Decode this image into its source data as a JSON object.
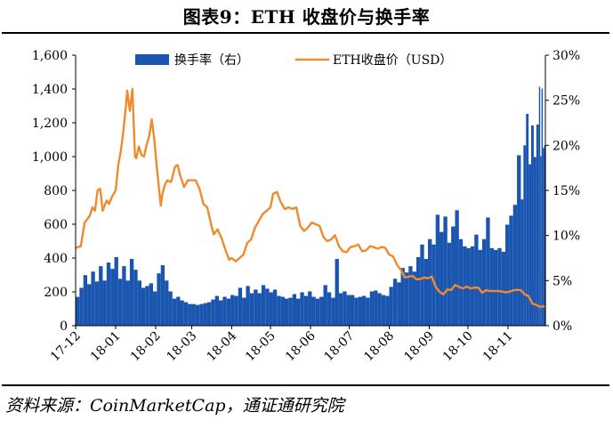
{
  "figure": {
    "title": "图表9：ETH 收盘价与换手率",
    "source": "资料来源：CoinMarketCap，通证通研究院"
  },
  "colors": {
    "turnover": "#1a55b0",
    "price": "#f08a2e"
  },
  "chart_data": {
    "type": "bar+line",
    "legend": {
      "placement": "top",
      "entries": [
        "换手率（右）",
        "ETH收盘价（USD）"
      ]
    },
    "x": {
      "start": "2017-12-01",
      "end": "2018-11-30",
      "ticks": [
        {
          "label": "17-12",
          "date": "2017-12-01"
        },
        {
          "label": "18-01",
          "date": "2018-01-01"
        },
        {
          "label": "18-02",
          "date": "2018-02-01"
        },
        {
          "label": "18-03",
          "date": "2018-03-01"
        },
        {
          "label": "18-04",
          "date": "2018-04-01"
        },
        {
          "label": "18-05",
          "date": "2018-05-01"
        },
        {
          "label": "18-06",
          "date": "2018-06-01"
        },
        {
          "label": "18-07",
          "date": "2018-07-01"
        },
        {
          "label": "18-08",
          "date": "2018-08-01"
        },
        {
          "label": "18-09",
          "date": "2018-09-01"
        },
        {
          "label": "18-10",
          "date": "2018-10-01"
        },
        {
          "label": "18-11",
          "date": "2018-11-01"
        }
      ]
    },
    "y_left": {
      "ylim": [
        0,
        1600
      ],
      "ticks": [
        "0",
        "200",
        "400",
        "600",
        "800",
        "1,000",
        "1,200",
        "1,400",
        "1,600"
      ]
    },
    "y_right": {
      "ylim": [
        0,
        30
      ],
      "unit": "%",
      "ticks": [
        "0%",
        "5%",
        "10%",
        "15%",
        "20%",
        "25%",
        "30%"
      ]
    },
    "series": [
      {
        "name": "ETH收盘价（USD）",
        "type": "line",
        "axis": "left",
        "points": [
          [
            "2017-12-01",
            460
          ],
          [
            "2017-12-05",
            470
          ],
          [
            "2017-12-08",
            610
          ],
          [
            "2017-12-12",
            650
          ],
          [
            "2017-12-14",
            700
          ],
          [
            "2017-12-16",
            680
          ],
          [
            "2017-12-18",
            800
          ],
          [
            "2017-12-20",
            810
          ],
          [
            "2017-12-22",
            680
          ],
          [
            "2017-12-25",
            740
          ],
          [
            "2017-12-27",
            720
          ],
          [
            "2017-12-29",
            760
          ],
          [
            "2018-01-01",
            800
          ],
          [
            "2018-01-03",
            950
          ],
          [
            "2018-01-05",
            1030
          ],
          [
            "2018-01-07",
            1150
          ],
          [
            "2018-01-09",
            1300
          ],
          [
            "2018-01-10",
            1390
          ],
          [
            "2018-01-12",
            1270
          ],
          [
            "2018-01-14",
            1400
          ],
          [
            "2018-01-16",
            1000
          ],
          [
            "2018-01-17",
            990
          ],
          [
            "2018-01-19",
            1060
          ],
          [
            "2018-01-21",
            1010
          ],
          [
            "2018-01-23",
            1000
          ],
          [
            "2018-01-25",
            1070
          ],
          [
            "2018-01-27",
            1120
          ],
          [
            "2018-01-29",
            1220
          ],
          [
            "2018-01-31",
            1100
          ],
          [
            "2018-02-02",
            930
          ],
          [
            "2018-02-05",
            710
          ],
          [
            "2018-02-06",
            770
          ],
          [
            "2018-02-08",
            830
          ],
          [
            "2018-02-10",
            860
          ],
          [
            "2018-02-13",
            850
          ],
          [
            "2018-02-16",
            940
          ],
          [
            "2018-02-18",
            950
          ],
          [
            "2018-02-20",
            890
          ],
          [
            "2018-02-23",
            820
          ],
          [
            "2018-02-26",
            860
          ],
          [
            "2018-03-01",
            860
          ],
          [
            "2018-03-04",
            860
          ],
          [
            "2018-03-07",
            810
          ],
          [
            "2018-03-10",
            720
          ],
          [
            "2018-03-13",
            700
          ],
          [
            "2018-03-16",
            600
          ],
          [
            "2018-03-18",
            540
          ],
          [
            "2018-03-21",
            570
          ],
          [
            "2018-03-24",
            520
          ],
          [
            "2018-03-27",
            450
          ],
          [
            "2018-03-30",
            390
          ],
          [
            "2018-04-01",
            400
          ],
          [
            "2018-04-04",
            380
          ],
          [
            "2018-04-07",
            400
          ],
          [
            "2018-04-10",
            420
          ],
          [
            "2018-04-13",
            490
          ],
          [
            "2018-04-16",
            510
          ],
          [
            "2018-04-19",
            580
          ],
          [
            "2018-04-22",
            620
          ],
          [
            "2018-04-25",
            660
          ],
          [
            "2018-04-28",
            680
          ],
          [
            "2018-05-01",
            700
          ],
          [
            "2018-05-03",
            780
          ],
          [
            "2018-05-06",
            790
          ],
          [
            "2018-05-09",
            730
          ],
          [
            "2018-05-12",
            690
          ],
          [
            "2018-05-15",
            700
          ],
          [
            "2018-05-18",
            690
          ],
          [
            "2018-05-21",
            700
          ],
          [
            "2018-05-24",
            590
          ],
          [
            "2018-05-27",
            560
          ],
          [
            "2018-05-30",
            580
          ],
          [
            "2018-06-02",
            610
          ],
          [
            "2018-06-05",
            600
          ],
          [
            "2018-06-08",
            590
          ],
          [
            "2018-06-11",
            525
          ],
          [
            "2018-06-14",
            500
          ],
          [
            "2018-06-17",
            510
          ],
          [
            "2018-06-20",
            535
          ],
          [
            "2018-06-23",
            470
          ],
          [
            "2018-06-26",
            440
          ],
          [
            "2018-06-29",
            435
          ],
          [
            "2018-07-02",
            465
          ],
          [
            "2018-07-05",
            470
          ],
          [
            "2018-07-08",
            480
          ],
          [
            "2018-07-11",
            440
          ],
          [
            "2018-07-14",
            445
          ],
          [
            "2018-07-17",
            470
          ],
          [
            "2018-07-20",
            465
          ],
          [
            "2018-07-23",
            455
          ],
          [
            "2018-07-26",
            465
          ],
          [
            "2018-07-29",
            460
          ],
          [
            "2018-08-01",
            420
          ],
          [
            "2018-08-04",
            410
          ],
          [
            "2018-08-07",
            360
          ],
          [
            "2018-08-10",
            330
          ],
          [
            "2018-08-13",
            285
          ],
          [
            "2018-08-16",
            290
          ],
          [
            "2018-08-19",
            295
          ],
          [
            "2018-08-22",
            275
          ],
          [
            "2018-08-25",
            275
          ],
          [
            "2018-08-28",
            285
          ],
          [
            "2018-08-31",
            280
          ],
          [
            "2018-09-03",
            290
          ],
          [
            "2018-09-06",
            230
          ],
          [
            "2018-09-09",
            200
          ],
          [
            "2018-09-12",
            185
          ],
          [
            "2018-09-15",
            215
          ],
          [
            "2018-09-18",
            210
          ],
          [
            "2018-09-21",
            240
          ],
          [
            "2018-09-24",
            230
          ],
          [
            "2018-09-27",
            220
          ],
          [
            "2018-09-30",
            232
          ],
          [
            "2018-10-03",
            220
          ],
          [
            "2018-10-06",
            225
          ],
          [
            "2018-10-09",
            225
          ],
          [
            "2018-10-12",
            195
          ],
          [
            "2018-10-15",
            210
          ],
          [
            "2018-10-18",
            205
          ],
          [
            "2018-10-21",
            205
          ],
          [
            "2018-10-24",
            205
          ],
          [
            "2018-10-27",
            203
          ],
          [
            "2018-10-30",
            197
          ],
          [
            "2018-11-02",
            200
          ],
          [
            "2018-11-05",
            209
          ],
          [
            "2018-11-08",
            212
          ],
          [
            "2018-11-11",
            210
          ],
          [
            "2018-11-14",
            185
          ],
          [
            "2018-11-17",
            175
          ],
          [
            "2018-11-20",
            130
          ],
          [
            "2018-11-23",
            123
          ],
          [
            "2018-11-26",
            110
          ],
          [
            "2018-11-28",
            115
          ],
          [
            "2018-11-30",
            113
          ]
        ]
      },
      {
        "name": "换手率（右）",
        "type": "bar",
        "axis": "right",
        "unit": "%",
        "points": [
          [
            "2017-12-01",
            3.2
          ],
          [
            "2017-12-04",
            4.2
          ],
          [
            "2017-12-07",
            5.6
          ],
          [
            "2017-12-10",
            4.6
          ],
          [
            "2017-12-13",
            6.0
          ],
          [
            "2017-12-16",
            4.9
          ],
          [
            "2017-12-19",
            6.6
          ],
          [
            "2017-12-22",
            5.0
          ],
          [
            "2017-12-25",
            7.0
          ],
          [
            "2017-12-28",
            6.3
          ],
          [
            "2017-12-31",
            7.6
          ],
          [
            "2018-01-03",
            5.2
          ],
          [
            "2018-01-06",
            6.6
          ],
          [
            "2018-01-09",
            5.0
          ],
          [
            "2018-01-12",
            7.4
          ],
          [
            "2018-01-15",
            6.2
          ],
          [
            "2018-01-18",
            5.0
          ],
          [
            "2018-01-21",
            4.2
          ],
          [
            "2018-01-24",
            4.4
          ],
          [
            "2018-01-27",
            4.7
          ],
          [
            "2018-01-30",
            3.8
          ],
          [
            "2018-02-02",
            5.8
          ],
          [
            "2018-02-05",
            6.7
          ],
          [
            "2018-02-08",
            5.0
          ],
          [
            "2018-02-11",
            3.8
          ],
          [
            "2018-02-14",
            3.0
          ],
          [
            "2018-02-17",
            3.2
          ],
          [
            "2018-02-20",
            2.8
          ],
          [
            "2018-02-23",
            2.6
          ],
          [
            "2018-02-26",
            2.4
          ],
          [
            "2018-03-01",
            2.4
          ],
          [
            "2018-03-04",
            2.3
          ],
          [
            "2018-03-07",
            2.4
          ],
          [
            "2018-03-10",
            2.5
          ],
          [
            "2018-03-13",
            2.6
          ],
          [
            "2018-03-16",
            2.9
          ],
          [
            "2018-03-19",
            3.3
          ],
          [
            "2018-03-22",
            2.8
          ],
          [
            "2018-03-25",
            3.2
          ],
          [
            "2018-03-28",
            3.0
          ],
          [
            "2018-03-31",
            3.4
          ],
          [
            "2018-04-03",
            3.3
          ],
          [
            "2018-04-06",
            4.2
          ],
          [
            "2018-04-09",
            3.1
          ],
          [
            "2018-04-12",
            4.4
          ],
          [
            "2018-04-15",
            3.6
          ],
          [
            "2018-04-18",
            4.0
          ],
          [
            "2018-04-21",
            3.6
          ],
          [
            "2018-04-24",
            4.5
          ],
          [
            "2018-04-27",
            4.1
          ],
          [
            "2018-04-30",
            3.7
          ],
          [
            "2018-05-03",
            4.0
          ],
          [
            "2018-05-06",
            3.3
          ],
          [
            "2018-05-09",
            3.2
          ],
          [
            "2018-05-12",
            3.0
          ],
          [
            "2018-05-15",
            3.1
          ],
          [
            "2018-05-18",
            3.5
          ],
          [
            "2018-05-21",
            3.0
          ],
          [
            "2018-05-24",
            3.7
          ],
          [
            "2018-05-27",
            3.3
          ],
          [
            "2018-05-30",
            3.8
          ],
          [
            "2018-06-02",
            3.2
          ],
          [
            "2018-06-05",
            3.0
          ],
          [
            "2018-06-08",
            3.2
          ],
          [
            "2018-06-11",
            4.5
          ],
          [
            "2018-06-14",
            3.7
          ],
          [
            "2018-06-17",
            3.1
          ],
          [
            "2018-06-20",
            7.4
          ],
          [
            "2018-06-23",
            3.6
          ],
          [
            "2018-06-26",
            3.8
          ],
          [
            "2018-06-29",
            3.4
          ],
          [
            "2018-07-02",
            3.4
          ],
          [
            "2018-07-05",
            3.1
          ],
          [
            "2018-07-08",
            3.2
          ],
          [
            "2018-07-11",
            3.3
          ],
          [
            "2018-07-14",
            3.1
          ],
          [
            "2018-07-17",
            3.8
          ],
          [
            "2018-07-20",
            3.9
          ],
          [
            "2018-07-23",
            3.6
          ],
          [
            "2018-07-26",
            3.4
          ],
          [
            "2018-07-29",
            3.3
          ],
          [
            "2018-08-01",
            4.3
          ],
          [
            "2018-08-04",
            5.2
          ],
          [
            "2018-08-07",
            4.8
          ],
          [
            "2018-08-10",
            6.4
          ],
          [
            "2018-08-13",
            5.9
          ],
          [
            "2018-08-16",
            6.6
          ],
          [
            "2018-08-19",
            6.0
          ],
          [
            "2018-08-22",
            7.6
          ],
          [
            "2018-08-25",
            9.0
          ],
          [
            "2018-08-28",
            7.4
          ],
          [
            "2018-08-31",
            9.6
          ],
          [
            "2018-09-03",
            9.0
          ],
          [
            "2018-09-06",
            12.3
          ],
          [
            "2018-09-09",
            10.4
          ],
          [
            "2018-09-12",
            12.1
          ],
          [
            "2018-09-15",
            9.2
          ],
          [
            "2018-09-18",
            11.0
          ],
          [
            "2018-09-21",
            12.8
          ],
          [
            "2018-09-24",
            9.6
          ],
          [
            "2018-09-27",
            8.8
          ],
          [
            "2018-09-30",
            8.6
          ],
          [
            "2018-10-03",
            8.8
          ],
          [
            "2018-10-06",
            10.1
          ],
          [
            "2018-10-09",
            8.4
          ],
          [
            "2018-10-12",
            9.6
          ],
          [
            "2018-10-15",
            12.0
          ],
          [
            "2018-10-18",
            8.6
          ],
          [
            "2018-10-21",
            8.4
          ],
          [
            "2018-10-24",
            8.6
          ],
          [
            "2018-10-27",
            8.2
          ],
          [
            "2018-10-30",
            11.2
          ],
          [
            "2018-11-02",
            12.2
          ],
          [
            "2018-11-05",
            13.4
          ],
          [
            "2018-11-08",
            18.9
          ],
          [
            "2018-11-11",
            14.0
          ],
          [
            "2018-11-13",
            20.0
          ],
          [
            "2018-11-15",
            23.5
          ],
          [
            "2018-11-17",
            17.9
          ],
          [
            "2018-11-19",
            22.2
          ],
          [
            "2018-11-21",
            18.7
          ],
          [
            "2018-11-23",
            22.3
          ],
          [
            "2018-11-25",
            26.5
          ],
          [
            "2018-11-26",
            18.8
          ],
          [
            "2018-11-27",
            26.3
          ],
          [
            "2018-11-28",
            19.7
          ],
          [
            "2018-11-29",
            20.0
          ],
          [
            "2018-11-30",
            19.6
          ]
        ]
      }
    ]
  }
}
